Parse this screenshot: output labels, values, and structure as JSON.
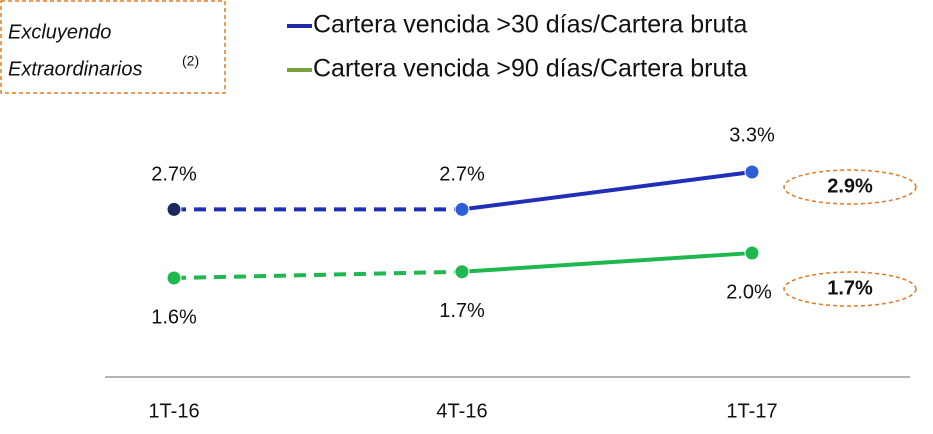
{
  "chart_data": {
    "type": "line",
    "note": {
      "lines": [
        "Excluyendo",
        "Extraordinarios"
      ],
      "superscript": "(2)"
    },
    "categories": [
      "1T-16",
      "4T-16",
      "1T-17"
    ],
    "segment_styles": [
      "dashed",
      "solid"
    ],
    "series": [
      {
        "name": "Cartera vencida >30 días/Cartera bruta",
        "color": "#1f2fb8",
        "legend_color": "#1f28a8",
        "marker_colors": [
          "#1a2a5e",
          "#2e5fd6",
          "#2e5fd6"
        ],
        "values": [
          2.7,
          2.7,
          3.3
        ],
        "value_labels": [
          "2.7%",
          "2.7%",
          "3.3%"
        ]
      },
      {
        "name": "Cartera vencida >90 días/Cartera bruta",
        "color": "#1fb850",
        "legend_color": "#77a33a",
        "marker_colors": [
          "#1fb850",
          "#1fb850",
          "#1fb850"
        ],
        "values": [
          1.6,
          1.7,
          2.0
        ],
        "value_labels": [
          "1.6%",
          "1.7%",
          "2.0%"
        ]
      }
    ],
    "callouts": [
      {
        "series": 0,
        "text": "2.9%"
      },
      {
        "series": 1,
        "text": "1.7%"
      }
    ]
  }
}
